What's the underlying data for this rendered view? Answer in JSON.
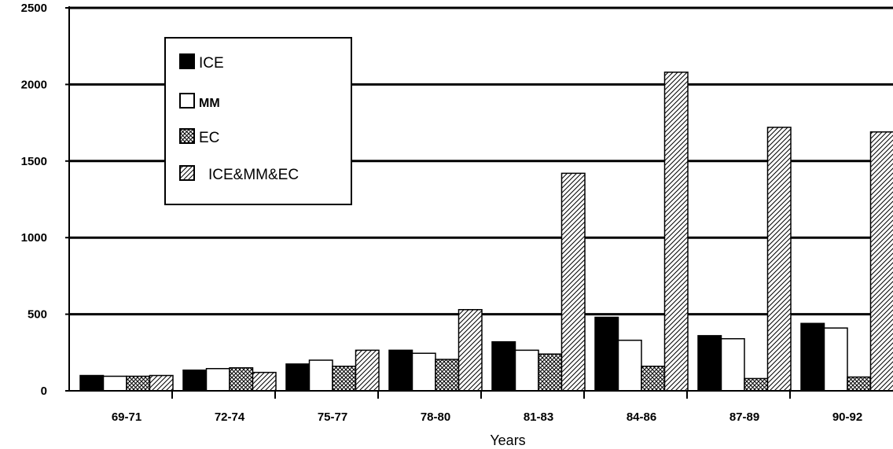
{
  "chart_data": {
    "type": "bar",
    "xlabel": "Years",
    "ylabel": "",
    "ylim": [
      0,
      2500
    ],
    "yticks": [
      "0",
      "500",
      "1000",
      "1500",
      "2000",
      "2500"
    ],
    "grid": true,
    "legend_position": "top-left",
    "categories": [
      "69-71",
      "72-74",
      "75-77",
      "78-80",
      "81-83",
      "84-86",
      "87-89",
      "90-92"
    ],
    "series": [
      {
        "name": "ICE",
        "fill": "solid-black",
        "values": [
          100,
          135,
          175,
          265,
          320,
          480,
          360,
          440
        ]
      },
      {
        "name": "MM",
        "fill": "white",
        "values": [
          95,
          145,
          200,
          245,
          265,
          330,
          340,
          410
        ]
      },
      {
        "name": "EC",
        "fill": "crosshatch",
        "values": [
          95,
          150,
          160,
          205,
          240,
          160,
          80,
          90
        ]
      },
      {
        "name": "ICE&MM&EC",
        "fill": "diagonal-hatch",
        "values": [
          100,
          120,
          265,
          530,
          1420,
          2080,
          1720,
          1690
        ]
      }
    ]
  }
}
